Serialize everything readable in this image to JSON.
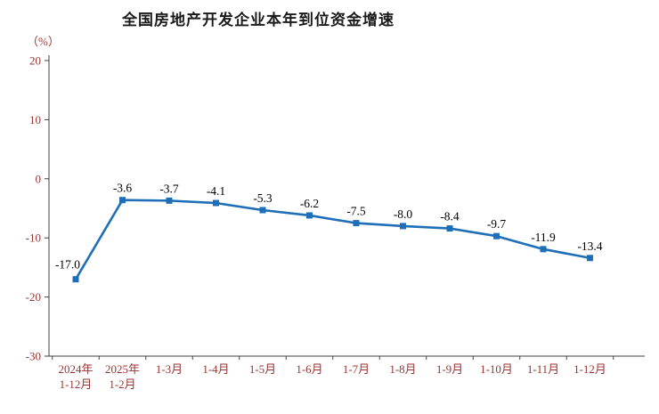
{
  "title": "全国房地产开发企业本年到位资金增速",
  "unit_label": "（%）",
  "colors": {
    "line": "#1F6EB8",
    "marker": "#1F6EB8",
    "tick_label": "#963634",
    "data_label": "#000000",
    "axis": "#404040",
    "title": "#1A1A1A"
  },
  "chart_data": {
    "type": "line",
    "title": "全国房地产开发企业本年到位资金增速",
    "ylabel": "（%）",
    "x_categories": [
      [
        "2024年",
        "1-12月"
      ],
      [
        "2025年",
        "1-2月"
      ],
      [
        "1-3月"
      ],
      [
        "1-4月"
      ],
      [
        "1-5月"
      ],
      [
        "1-6月"
      ],
      [
        "1-7月"
      ],
      [
        "1-8月"
      ],
      [
        "1-9月"
      ],
      [
        "1-10月"
      ],
      [
        "1-11月"
      ],
      [
        "1-12月"
      ]
    ],
    "values": [
      -17.0,
      -3.6,
      -3.7,
      -4.1,
      -5.3,
      -6.2,
      -7.5,
      -8.0,
      -8.4,
      -9.7,
      -11.9,
      -13.4
    ],
    "data_labels": [
      "-17.0",
      "-3.6",
      "-3.7",
      "-4.1",
      "-5.3",
      "-6.2",
      "-7.5",
      "-8.0",
      "-8.4",
      "-9.7",
      "-11.9",
      "-13.4"
    ],
    "ylim": [
      -30,
      20
    ],
    "yticks": [
      20,
      10,
      0,
      -10,
      -20,
      -30
    ],
    "grid": false,
    "legend": "none",
    "marker_style": "square",
    "series_name": "本年到位资金增速"
  }
}
